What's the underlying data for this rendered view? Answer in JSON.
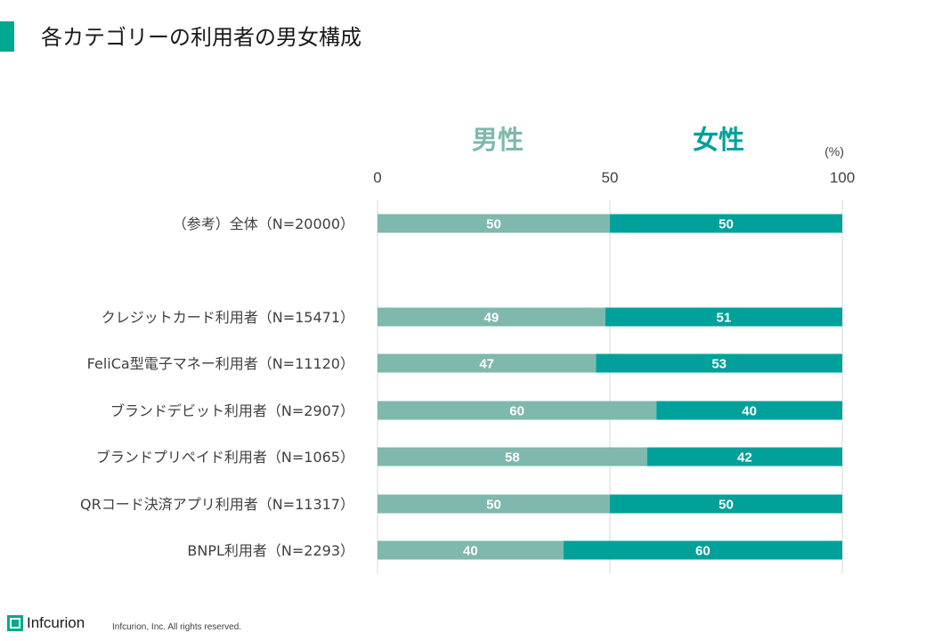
{
  "page": {
    "title": "各カテゴリーの利用者の男女構成",
    "footer_logo_text": "Infcurion",
    "footer_copyright": "Infcurion, Inc.  All rights reserved."
  },
  "chart_data": {
    "type": "bar",
    "orientation": "horizontal",
    "stacked": true,
    "unit_label": "(%)",
    "xlim": [
      0,
      100
    ],
    "xticks": [
      0,
      50,
      100
    ],
    "grid": true,
    "legend": [
      "男性",
      "女性"
    ],
    "colors": {
      "男性": "#7fb8ad",
      "女性": "#00a19a"
    },
    "categories": [
      "（参考）全体（N=20000）",
      "クレジットカード利用者（N=15471）",
      "FeliCa型電子マネー利用者（N=11120）",
      "ブランドデビット利用者（N=2907）",
      "ブランドプリペイド利用者（N=1065）",
      "QRコード決済アプリ利用者（N=11317）",
      "BNPL利用者（N=2293）"
    ],
    "series": [
      {
        "name": "男性",
        "values": [
          50,
          49,
          47,
          60,
          58,
          50,
          40
        ]
      },
      {
        "name": "女性",
        "values": [
          50,
          51,
          53,
          40,
          42,
          50,
          60
        ]
      }
    ]
  }
}
